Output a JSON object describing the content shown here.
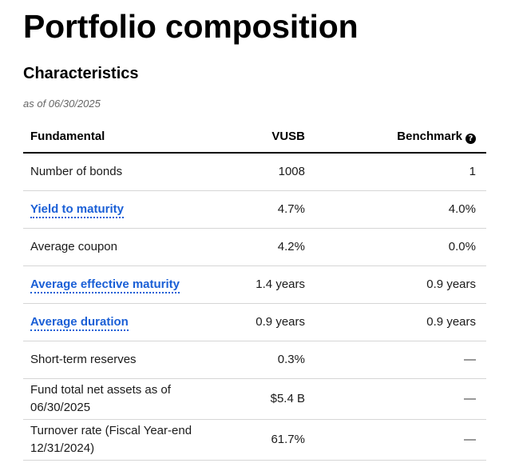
{
  "page_title": "Portfolio composition",
  "section_title": "Characteristics",
  "as_of": "as of 06/30/2025",
  "table": {
    "headers": {
      "fundamental": "Fundamental",
      "fund": "VUSB",
      "benchmark": "Benchmark",
      "benchmark_icon": "?"
    },
    "rows": [
      {
        "label": "Number of bonds",
        "link": false,
        "fund": "1008",
        "benchmark": "1"
      },
      {
        "label": "Yield to maturity",
        "link": true,
        "fund": "4.7%",
        "benchmark": "4.0%"
      },
      {
        "label": "Average coupon",
        "link": false,
        "fund": "4.2%",
        "benchmark": "0.0%"
      },
      {
        "label": "Average effective maturity",
        "link": true,
        "fund": "1.4 years",
        "benchmark": "0.9 years"
      },
      {
        "label": "Average duration",
        "link": true,
        "fund": "0.9 years",
        "benchmark": "0.9 years"
      },
      {
        "label": "Short-term reserves",
        "link": false,
        "fund": "0.3%",
        "benchmark": "—"
      },
      {
        "label": "Fund total net assets as of 06/30/2025",
        "link": false,
        "fund": "$5.4 B",
        "benchmark": "—"
      },
      {
        "label": "Turnover rate (Fiscal Year-end 12/31/2024)",
        "link": false,
        "fund": "61.7%",
        "benchmark": "—"
      }
    ]
  },
  "icons": {
    "info": "info-icon"
  },
  "colors": {
    "link": "#1a5fd6",
    "header_rule": "#000000",
    "row_rule": "#d6d6d6"
  }
}
